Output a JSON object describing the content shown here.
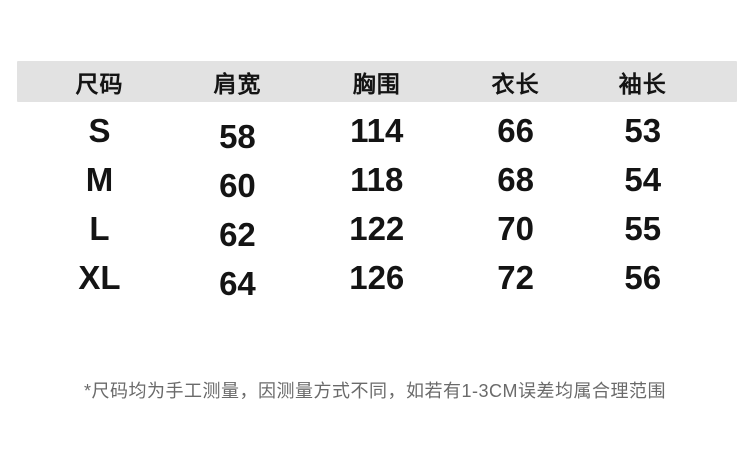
{
  "chart_data": {
    "type": "table",
    "title": "",
    "columns": [
      "尺码",
      "肩宽",
      "胸围",
      "衣长",
      "袖长"
    ],
    "rows": [
      [
        "S",
        "58",
        "114",
        "66",
        "53"
      ],
      [
        "M",
        "60",
        "118",
        "68",
        "54"
      ],
      [
        "L",
        "62",
        "122",
        "70",
        "55"
      ],
      [
        "XL",
        "64",
        "126",
        "72",
        "56"
      ]
    ],
    "footnote": "*尺码均为手工测量，因测量方式不同，如若有1-3CM误差均属合理范围"
  },
  "colors": {
    "page_bg": "#ffffff",
    "header_bg": "#e2e2e2",
    "table_text": "#141414",
    "footnote_text": "#6a6a6a"
  }
}
